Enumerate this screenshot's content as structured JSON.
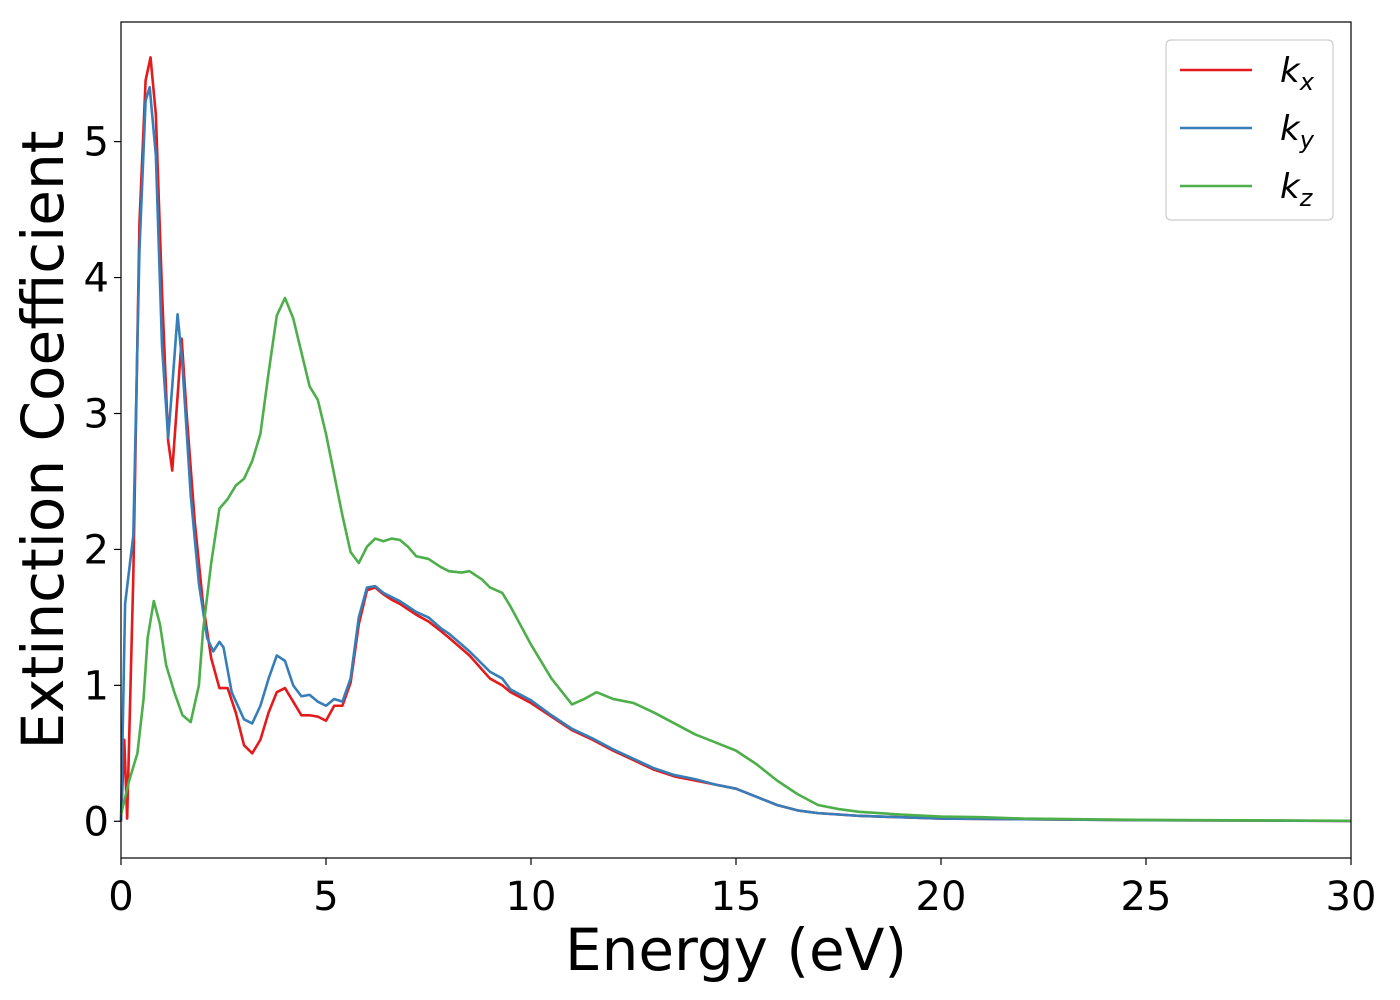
{
  "chart_data": {
    "type": "line",
    "title": "",
    "xlabel": "Energy (eV)",
    "ylabel": "Extinction Coefficient",
    "xlim": [
      0,
      30
    ],
    "ylim": [
      -0.27,
      5.88
    ],
    "xticks": [
      0,
      5,
      10,
      15,
      20,
      25,
      30
    ],
    "yticks": [
      0,
      1,
      2,
      3,
      4,
      5
    ],
    "grid": false,
    "legend_position": "top-right",
    "series": [
      {
        "name": "k",
        "subscript": "x",
        "color": "#e41a1c",
        "points": [
          [
            0,
            0.0
          ],
          [
            0.08,
            0.6
          ],
          [
            0.15,
            0.02
          ],
          [
            0.3,
            1.8
          ],
          [
            0.45,
            4.4
          ],
          [
            0.6,
            5.45
          ],
          [
            0.72,
            5.62
          ],
          [
            0.85,
            5.2
          ],
          [
            1.0,
            3.9
          ],
          [
            1.15,
            2.8
          ],
          [
            1.25,
            2.58
          ],
          [
            1.35,
            3.0
          ],
          [
            1.48,
            3.55
          ],
          [
            1.6,
            3.0
          ],
          [
            1.8,
            2.2
          ],
          [
            2.0,
            1.6
          ],
          [
            2.2,
            1.2
          ],
          [
            2.4,
            0.98
          ],
          [
            2.6,
            0.98
          ],
          [
            2.8,
            0.8
          ],
          [
            3.0,
            0.56
          ],
          [
            3.2,
            0.5
          ],
          [
            3.4,
            0.6
          ],
          [
            3.6,
            0.8
          ],
          [
            3.8,
            0.95
          ],
          [
            4.0,
            0.98
          ],
          [
            4.2,
            0.88
          ],
          [
            4.4,
            0.78
          ],
          [
            4.6,
            0.78
          ],
          [
            4.8,
            0.77
          ],
          [
            5.0,
            0.74
          ],
          [
            5.2,
            0.85
          ],
          [
            5.4,
            0.85
          ],
          [
            5.6,
            1.02
          ],
          [
            5.8,
            1.45
          ],
          [
            6.0,
            1.7
          ],
          [
            6.2,
            1.72
          ],
          [
            6.4,
            1.67
          ],
          [
            6.6,
            1.63
          ],
          [
            6.8,
            1.6
          ],
          [
            7.0,
            1.56
          ],
          [
            7.2,
            1.52
          ],
          [
            7.5,
            1.47
          ],
          [
            7.8,
            1.4
          ],
          [
            8.0,
            1.35
          ],
          [
            8.5,
            1.22
          ],
          [
            9.0,
            1.05
          ],
          [
            9.3,
            1.0
          ],
          [
            9.5,
            0.95
          ],
          [
            10.0,
            0.87
          ],
          [
            10.5,
            0.77
          ],
          [
            11.0,
            0.67
          ],
          [
            11.5,
            0.6
          ],
          [
            12.0,
            0.52
          ],
          [
            12.5,
            0.45
          ],
          [
            13.0,
            0.38
          ],
          [
            13.5,
            0.33
          ],
          [
            14.0,
            0.3
          ],
          [
            14.5,
            0.27
          ],
          [
            15.0,
            0.24
          ],
          [
            15.5,
            0.18
          ],
          [
            16.0,
            0.12
          ],
          [
            16.5,
            0.08
          ],
          [
            17.0,
            0.06
          ],
          [
            18.0,
            0.04
          ],
          [
            19.0,
            0.03
          ],
          [
            20.0,
            0.02
          ],
          [
            22.0,
            0.015
          ],
          [
            25.0,
            0.008
          ],
          [
            30.0,
            0.003
          ]
        ]
      },
      {
        "name": "k",
        "subscript": "y",
        "color": "#377eb8",
        "points": [
          [
            0,
            0.0
          ],
          [
            0.1,
            1.6
          ],
          [
            0.2,
            1.85
          ],
          [
            0.3,
            2.1
          ],
          [
            0.45,
            4.2
          ],
          [
            0.6,
            5.3
          ],
          [
            0.7,
            5.4
          ],
          [
            0.85,
            4.9
          ],
          [
            1.0,
            3.5
          ],
          [
            1.15,
            2.82
          ],
          [
            1.25,
            3.2
          ],
          [
            1.38,
            3.73
          ],
          [
            1.5,
            3.35
          ],
          [
            1.7,
            2.4
          ],
          [
            1.9,
            1.75
          ],
          [
            2.1,
            1.35
          ],
          [
            2.25,
            1.25
          ],
          [
            2.4,
            1.32
          ],
          [
            2.5,
            1.28
          ],
          [
            2.7,
            0.95
          ],
          [
            3.0,
            0.75
          ],
          [
            3.2,
            0.72
          ],
          [
            3.4,
            0.85
          ],
          [
            3.6,
            1.05
          ],
          [
            3.8,
            1.22
          ],
          [
            4.0,
            1.18
          ],
          [
            4.2,
            1.0
          ],
          [
            4.4,
            0.92
          ],
          [
            4.6,
            0.93
          ],
          [
            4.8,
            0.88
          ],
          [
            5.0,
            0.85
          ],
          [
            5.2,
            0.9
          ],
          [
            5.4,
            0.88
          ],
          [
            5.6,
            1.05
          ],
          [
            5.8,
            1.5
          ],
          [
            6.0,
            1.72
          ],
          [
            6.2,
            1.73
          ],
          [
            6.4,
            1.68
          ],
          [
            6.6,
            1.65
          ],
          [
            6.8,
            1.62
          ],
          [
            7.0,
            1.58
          ],
          [
            7.2,
            1.54
          ],
          [
            7.5,
            1.5
          ],
          [
            7.8,
            1.42
          ],
          [
            8.0,
            1.38
          ],
          [
            8.5,
            1.25
          ],
          [
            9.0,
            1.1
          ],
          [
            9.3,
            1.05
          ],
          [
            9.5,
            0.97
          ],
          [
            10.0,
            0.89
          ],
          [
            10.5,
            0.78
          ],
          [
            11.0,
            0.68
          ],
          [
            11.5,
            0.61
          ],
          [
            12.0,
            0.53
          ],
          [
            12.5,
            0.46
          ],
          [
            13.0,
            0.39
          ],
          [
            13.5,
            0.34
          ],
          [
            14.0,
            0.31
          ],
          [
            14.5,
            0.27
          ],
          [
            15.0,
            0.24
          ],
          [
            15.5,
            0.18
          ],
          [
            16.0,
            0.12
          ],
          [
            16.5,
            0.08
          ],
          [
            17.0,
            0.06
          ],
          [
            18.0,
            0.04
          ],
          [
            19.0,
            0.03
          ],
          [
            20.0,
            0.02
          ],
          [
            22.0,
            0.015
          ],
          [
            25.0,
            0.008
          ],
          [
            30.0,
            0.003
          ]
        ]
      },
      {
        "name": "k",
        "subscript": "z",
        "color": "#4daf4a",
        "points": [
          [
            0,
            0.05
          ],
          [
            0.2,
            0.3
          ],
          [
            0.4,
            0.5
          ],
          [
            0.55,
            0.9
          ],
          [
            0.65,
            1.35
          ],
          [
            0.8,
            1.62
          ],
          [
            0.95,
            1.45
          ],
          [
            1.1,
            1.15
          ],
          [
            1.3,
            0.95
          ],
          [
            1.5,
            0.78
          ],
          [
            1.7,
            0.73
          ],
          [
            1.9,
            1.0
          ],
          [
            2.0,
            1.4
          ],
          [
            2.2,
            1.9
          ],
          [
            2.4,
            2.3
          ],
          [
            2.6,
            2.37
          ],
          [
            2.8,
            2.47
          ],
          [
            3.0,
            2.52
          ],
          [
            3.2,
            2.65
          ],
          [
            3.4,
            2.85
          ],
          [
            3.6,
            3.3
          ],
          [
            3.8,
            3.72
          ],
          [
            4.0,
            3.85
          ],
          [
            4.2,
            3.7
          ],
          [
            4.4,
            3.45
          ],
          [
            4.6,
            3.2
          ],
          [
            4.8,
            3.1
          ],
          [
            5.0,
            2.85
          ],
          [
            5.2,
            2.55
          ],
          [
            5.4,
            2.25
          ],
          [
            5.6,
            1.98
          ],
          [
            5.8,
            1.9
          ],
          [
            6.0,
            2.02
          ],
          [
            6.2,
            2.08
          ],
          [
            6.4,
            2.06
          ],
          [
            6.6,
            2.08
          ],
          [
            6.8,
            2.07
          ],
          [
            7.0,
            2.02
          ],
          [
            7.2,
            1.95
          ],
          [
            7.5,
            1.93
          ],
          [
            7.8,
            1.87
          ],
          [
            8.0,
            1.84
          ],
          [
            8.3,
            1.83
          ],
          [
            8.5,
            1.84
          ],
          [
            8.8,
            1.78
          ],
          [
            9.0,
            1.72
          ],
          [
            9.3,
            1.68
          ],
          [
            9.5,
            1.58
          ],
          [
            10.0,
            1.3
          ],
          [
            10.5,
            1.05
          ],
          [
            11.0,
            0.86
          ],
          [
            11.3,
            0.9
          ],
          [
            11.6,
            0.95
          ],
          [
            12.0,
            0.9
          ],
          [
            12.5,
            0.87
          ],
          [
            13.0,
            0.8
          ],
          [
            13.5,
            0.72
          ],
          [
            14.0,
            0.64
          ],
          [
            14.5,
            0.58
          ],
          [
            15.0,
            0.52
          ],
          [
            15.5,
            0.42
          ],
          [
            16.0,
            0.3
          ],
          [
            16.5,
            0.2
          ],
          [
            17.0,
            0.12
          ],
          [
            17.5,
            0.09
          ],
          [
            18.0,
            0.07
          ],
          [
            19.0,
            0.05
          ],
          [
            20.0,
            0.035
          ],
          [
            21.0,
            0.03
          ],
          [
            22.0,
            0.02
          ],
          [
            25.0,
            0.01
          ],
          [
            30.0,
            0.004
          ]
        ]
      }
    ]
  }
}
